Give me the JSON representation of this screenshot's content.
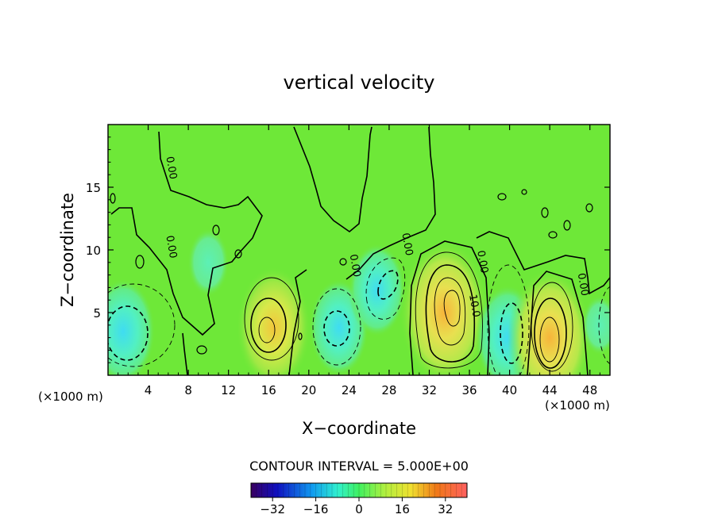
{
  "chart_data": {
    "type": "heatmap",
    "title": "vertical velocity",
    "xlabel": "X−coordinate",
    "ylabel": "Z−coordinate",
    "x_unit_left": "(×1000 m)",
    "x_unit_right": "(×1000 m)",
    "xlim": [
      0,
      50
    ],
    "ylim": [
      0,
      20
    ],
    "x_ticks": [
      4,
      8,
      12,
      16,
      20,
      24,
      28,
      32,
      36,
      40,
      44,
      48
    ],
    "x_tick_labels": [
      "4",
      "8",
      "12",
      "16",
      "20",
      "24",
      "28",
      "32",
      "36",
      "40",
      "44",
      "48"
    ],
    "y_ticks": [
      5,
      10,
      15
    ],
    "y_tick_labels": [
      "5",
      "10",
      "15"
    ],
    "contour_interval_text": "CONTOUR INTERVAL = 5.000E+00",
    "contour_labels": [
      {
        "text": "0.00",
        "x": 6.0,
        "y": 16.5
      },
      {
        "text": "0.00",
        "x": 6.0,
        "y": 10.2
      },
      {
        "text": "0.00",
        "x": 24.3,
        "y": 8.7
      },
      {
        "text": "0.00",
        "x": 29.5,
        "y": 10.4
      },
      {
        "text": "0.00",
        "x": 37.0,
        "y": 9.0
      },
      {
        "text": "0.00",
        "x": 47.0,
        "y": 7.2
      },
      {
        "text": "10.0",
        "x": 36.2,
        "y": 5.5
      }
    ],
    "cells": [
      {
        "x": 1.5,
        "y": 3.5,
        "v": -14
      },
      {
        "x": 10.0,
        "y": 9.0,
        "v": -5
      },
      {
        "x": 16.5,
        "y": 3.8,
        "v": 18
      },
      {
        "x": 23.0,
        "y": 3.8,
        "v": -12
      },
      {
        "x": 26.8,
        "y": 6.8,
        "v": -11
      },
      {
        "x": 33.5,
        "y": 5.0,
        "v": 24
      },
      {
        "x": 39.8,
        "y": 3.0,
        "v": -14
      },
      {
        "x": 44.0,
        "y": 3.0,
        "v": 22
      },
      {
        "x": 49.0,
        "y": 4.0,
        "v": -3
      }
    ],
    "colorbar": {
      "range": [
        -40,
        40
      ],
      "ticks": [
        -32,
        -16,
        0,
        16,
        32
      ],
      "tick_labels": [
        "−32",
        "−16",
        "0",
        "16",
        "32"
      ]
    }
  }
}
